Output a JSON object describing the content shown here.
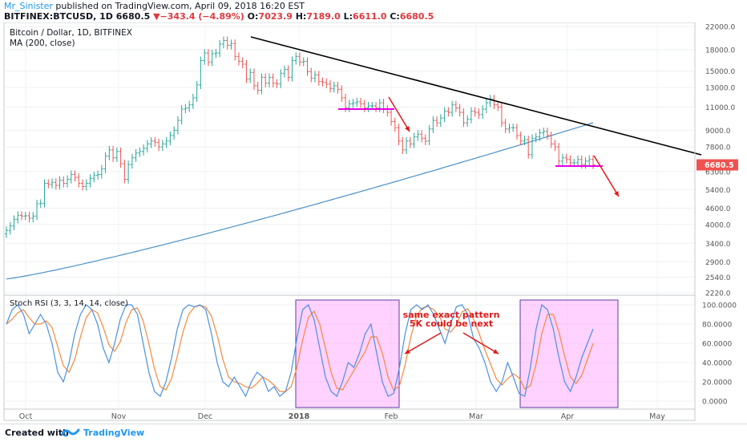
{
  "header": {
    "username": "Mr_Sinister",
    "published_text": " published on TradingView.com, April 09, 2018 16:20 EST",
    "symbol": "BITFINEX:BTCUSD, 1D",
    "last_price": "6680.5",
    "change": "−343.4 (−4.89%)",
    "o_label": "O:",
    "o_val": "7023.9",
    "h_label": "H:",
    "h_val": "7189.0",
    "l_label": "L:",
    "l_val": "6611.0",
    "c_label": "C:",
    "c_val": "6680.5"
  },
  "footer": {
    "created_with": "Created with",
    "brand": "TradingView"
  },
  "colors": {
    "up": "#26a69a",
    "down": "#ef5350",
    "ma": "#4a90c6",
    "k": "#4a90e2",
    "d": "#f4883d",
    "annot": "#e0191b",
    "box": "#ff9cff",
    "trend": "#000000"
  },
  "chart_data": [
    {
      "type": "candlestick",
      "title": "Bitcoin / Dollar, 1D, BITFINEX",
      "ma_label": "MA (200, close)",
      "y_scale": "log",
      "yticks": [
        "2220.0",
        "2540.0",
        "2900.0",
        "3400.0",
        "4000.0",
        "4600.0",
        "5400.0",
        "6300.0",
        "7800.0",
        "9000.0",
        "11000.0",
        "13000.0",
        "15000.0",
        "18000.0",
        "22000.0"
      ],
      "ylim": [
        2220,
        22000
      ],
      "x_labels": [
        "Oct",
        "Nov",
        "Dec",
        "2018",
        "Feb",
        "Mar",
        "Apr",
        "May"
      ],
      "price_tag": "6680.5",
      "closes": [
        3800,
        3950,
        4180,
        4330,
        4300,
        4310,
        4220,
        4300,
        4780,
        4800,
        5700,
        5650,
        5750,
        5600,
        5850,
        5700,
        5900,
        6150,
        6000,
        5700,
        5550,
        5700,
        5950,
        6100,
        6150,
        6450,
        7200,
        7600,
        7100,
        7500,
        6750,
        5900,
        6700,
        7100,
        7400,
        7500,
        7700,
        8000,
        8200,
        8100,
        7800,
        8000,
        8200,
        8600,
        9000,
        9800,
        10800,
        10900,
        11200,
        11900,
        13300,
        16400,
        17500,
        16200,
        17400,
        17500,
        18900,
        19500,
        18700,
        19000,
        17000,
        16300,
        15900,
        14000,
        14800,
        13200,
        12700,
        14200,
        13500,
        14200,
        13500,
        13400,
        14700,
        15200,
        14200,
        16400,
        17000,
        16200,
        16300,
        14900,
        14100,
        14500,
        13700,
        13600,
        13400,
        12900,
        13200,
        12800,
        11900,
        10900,
        11300,
        11400,
        11500,
        11300,
        10900,
        11100,
        11100,
        10900,
        11400,
        10800,
        10500,
        9700,
        9200,
        8200,
        7600,
        8200,
        8000,
        8500,
        8700,
        8400,
        8200,
        9100,
        9800,
        9600,
        10000,
        10600,
        10500,
        11200,
        10900,
        10500,
        9600,
        9900,
        10600,
        10500,
        10300,
        10800,
        11400,
        11800,
        11200,
        11000,
        9600,
        9100,
        9200,
        9200,
        8600,
        8200,
        8300,
        7300,
        8400,
        8500,
        8800,
        8900,
        8600,
        8000,
        7800,
        6900,
        7100,
        7000,
        6800,
        6800,
        7000,
        6700,
        6900,
        7000,
        6680
      ],
      "ma200_approx": [
        2500,
        9600
      ],
      "annotations": [
        "same exact pattern",
        "5K could be next"
      ]
    },
    {
      "type": "line",
      "title": "Stoch RSI (3, 3, 14, 14, close)",
      "yticks": [
        "100.0000",
        "80.0000",
        "60.0000",
        "40.0000",
        "20.0000",
        "0.0000"
      ],
      "ylim": [
        -5,
        105
      ],
      "series": [
        {
          "name": "K",
          "values": [
            80,
            95,
            100,
            90,
            70,
            80,
            90,
            80,
            60,
            30,
            20,
            40,
            70,
            90,
            100,
            95,
            80,
            55,
            40,
            60,
            85,
            100,
            100,
            90,
            60,
            30,
            10,
            5,
            20,
            45,
            75,
            95,
            100,
            98,
            100,
            95,
            70,
            40,
            20,
            15,
            25,
            15,
            5,
            20,
            30,
            25,
            10,
            15,
            5,
            10,
            30,
            65,
            95,
            100,
            85,
            55,
            25,
            10,
            5,
            20,
            40,
            35,
            50,
            70,
            80,
            50,
            20,
            5,
            8,
            35,
            70,
            95,
            100,
            95,
            100,
            90,
            75,
            60,
            80,
            98,
            100,
            90,
            65,
            55,
            40,
            20,
            10,
            20,
            40,
            25,
            8,
            5,
            35,
            75,
            100,
            95,
            75,
            45,
            20,
            10,
            25,
            45,
            60,
            75
          ]
        }
      ]
    }
  ]
}
